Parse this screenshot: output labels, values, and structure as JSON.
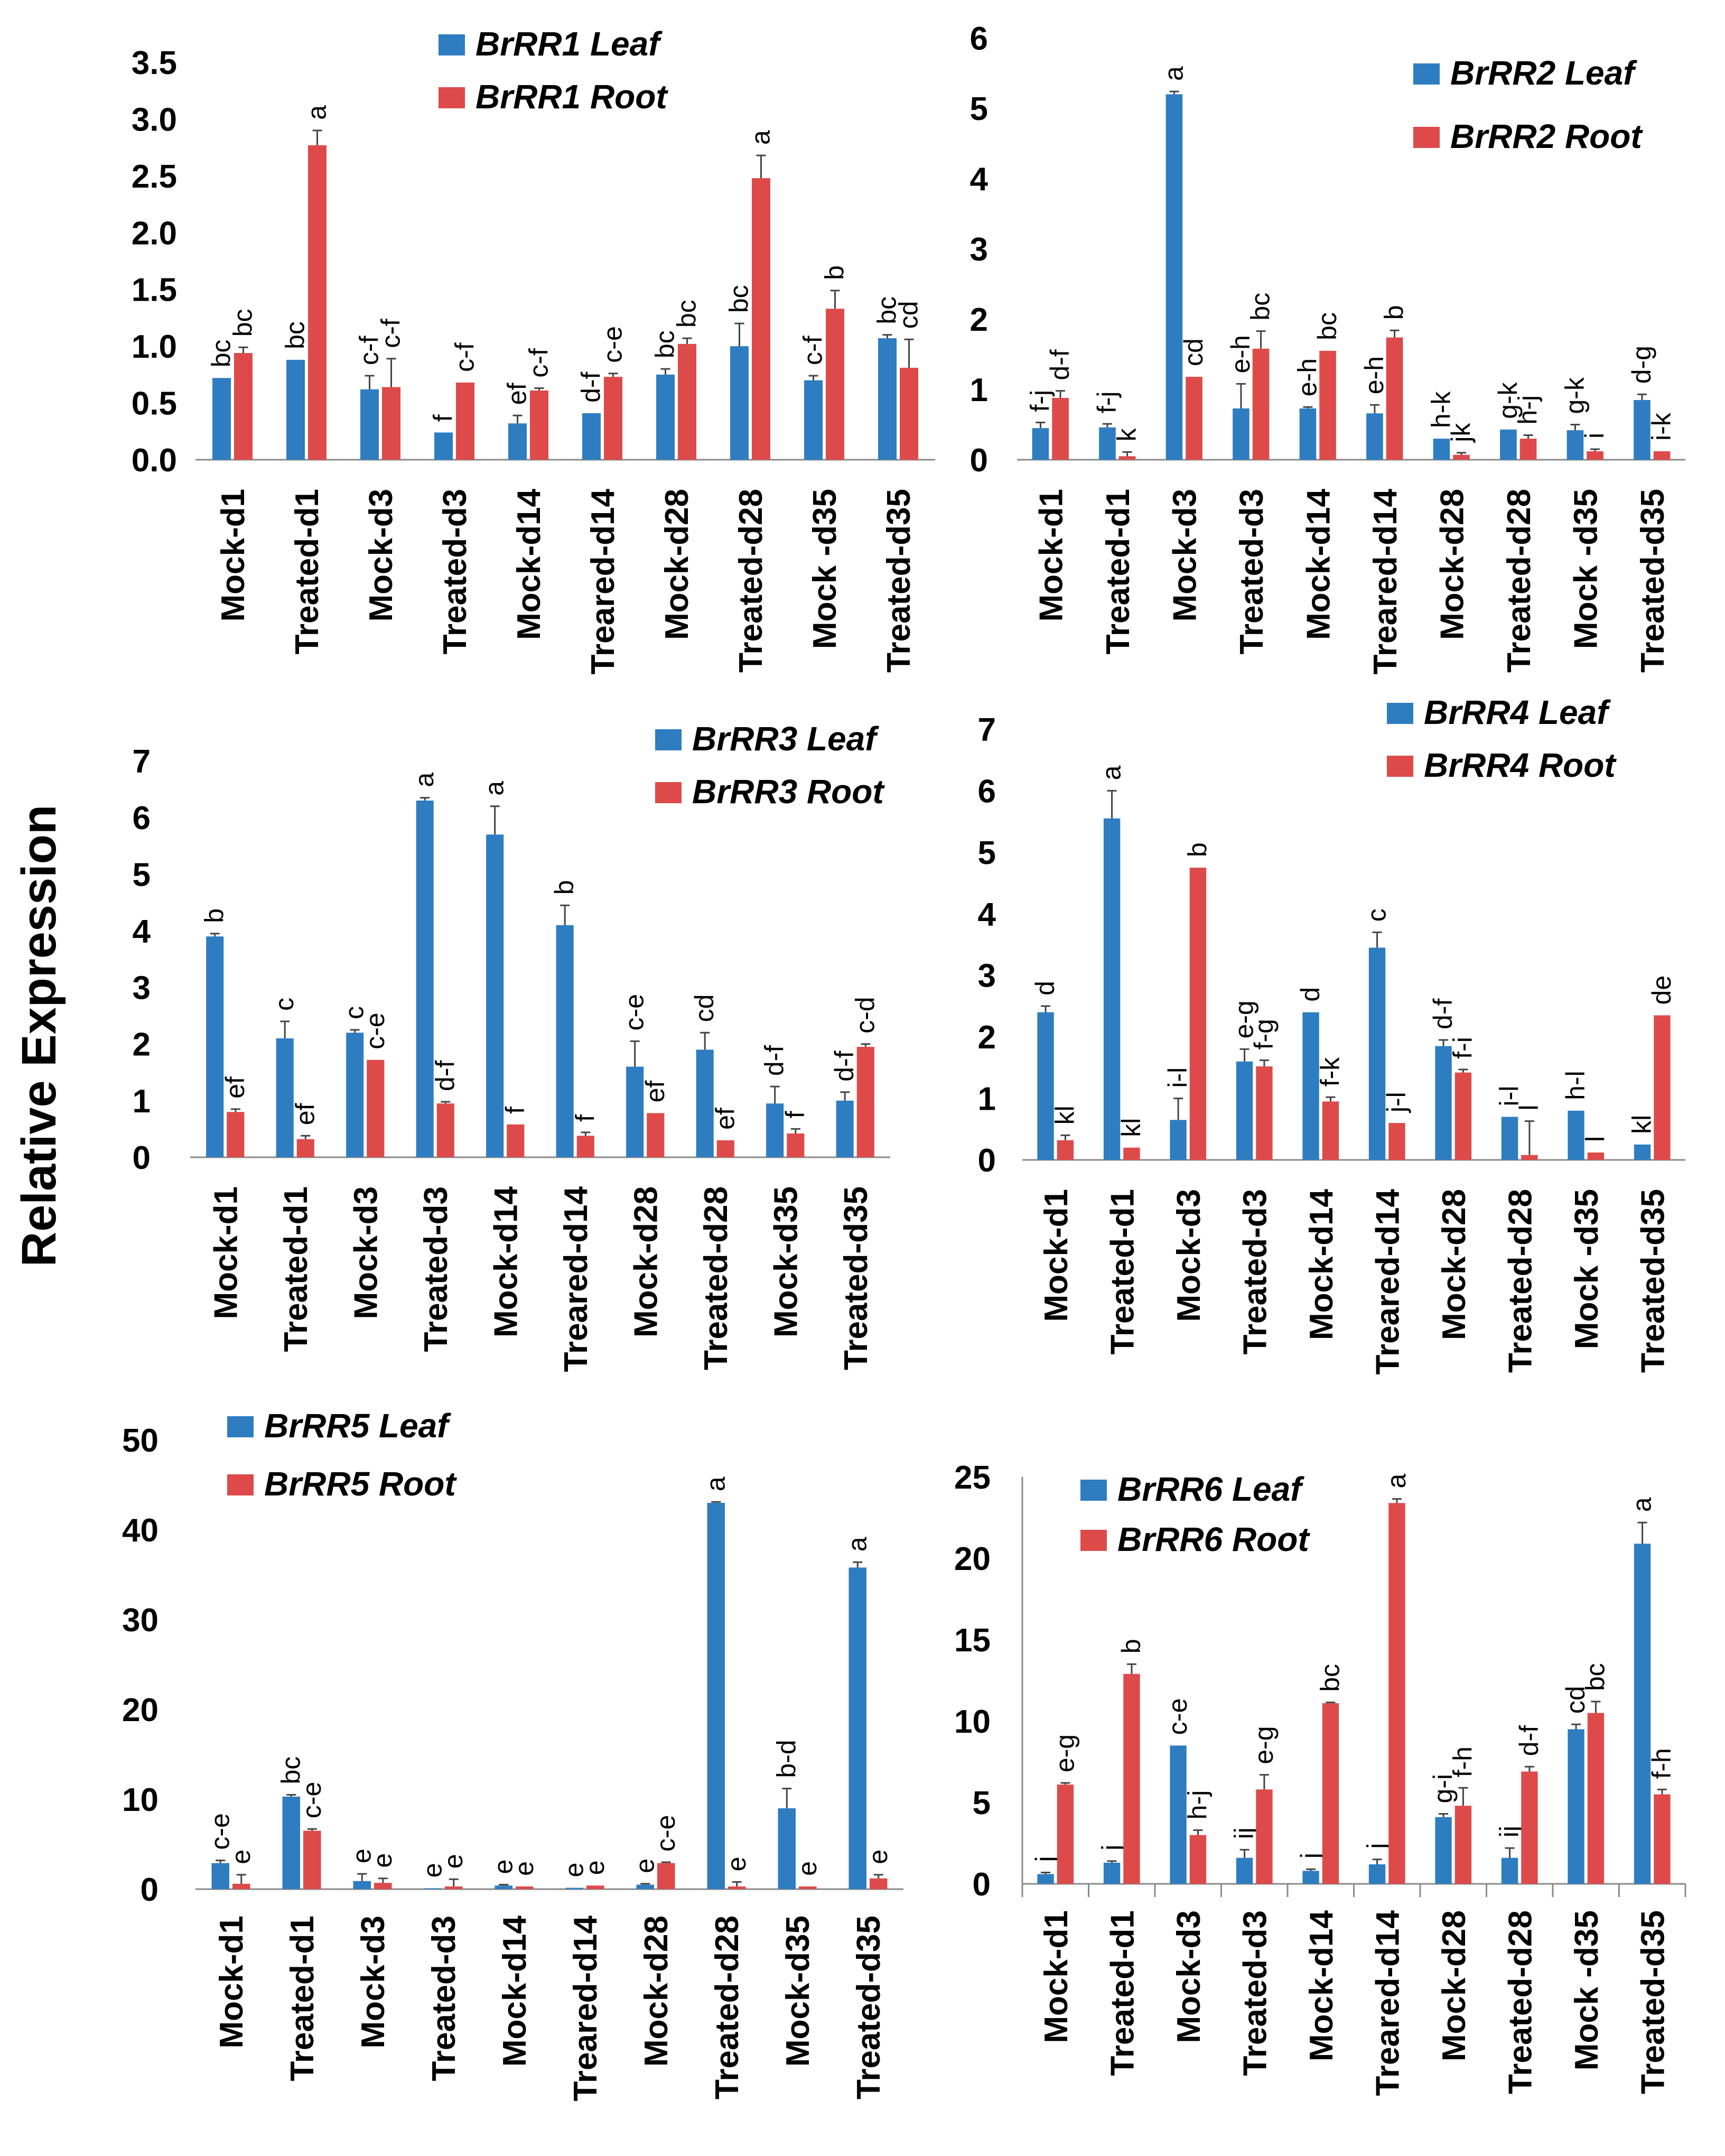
{
  "figure": {
    "ylabel": "Relative Expression"
  },
  "colors": {
    "leaf": "#2E7DC1",
    "root": "#DE4A4A"
  },
  "chart_data": [
    {
      "type": "bar",
      "title": "BrRR1",
      "ylim": [
        0,
        3.5
      ],
      "yticks": [
        "0.0",
        "0.5",
        "1.0",
        "1.5",
        "2.0",
        "2.5",
        "3.0",
        "3.5"
      ],
      "categories": [
        "Mock-d1",
        "Treated-d1",
        "Mock-d3",
        "Treated-d3",
        "Mock-d14",
        "Treared-d14",
        "Mock-d28",
        "Treated-d28",
        "Mock -d35",
        "Treated-d35"
      ],
      "series": [
        {
          "name": "BrRR1 Leaf",
          "values": [
            0.72,
            0.88,
            0.62,
            0.24,
            0.32,
            0.41,
            0.75,
            1.0,
            0.7,
            1.07
          ],
          "errors": [
            0,
            0,
            0.12,
            0,
            0.07,
            0,
            0.05,
            0.2,
            0.04,
            0.03
          ],
          "sig": [
            "bc",
            "bc",
            "c-f",
            "f",
            "ef",
            "d-f",
            "bc",
            "bc",
            "c-f",
            "bc"
          ]
        },
        {
          "name": "BrRR1 Root",
          "values": [
            0.94,
            2.77,
            0.64,
            0.68,
            0.61,
            0.73,
            1.02,
            2.48,
            1.33,
            0.81
          ],
          "errors": [
            0.05,
            0.13,
            0.25,
            0,
            0.02,
            0.03,
            0.05,
            0.2,
            0.16,
            0.25
          ],
          "sig": [
            "bc",
            "a",
            "c-f",
            "c-f",
            "c-f",
            "c-e",
            "bc",
            "a",
            "b",
            "cd"
          ]
        }
      ]
    },
    {
      "type": "bar",
      "title": "BrRR2",
      "ylim": [
        0,
        6
      ],
      "yticks": [
        "0",
        "1",
        "2",
        "3",
        "4",
        "5",
        "6"
      ],
      "categories": [
        "Mock-d1",
        "Treated-d1",
        "Mock-d3",
        "Treated-d3",
        "Mock-d14",
        "Treared-d14",
        "Mock-d28",
        "Treated-d28",
        "Mock -d35",
        "Treated-d35"
      ],
      "series": [
        {
          "name": "BrRR2 Leaf",
          "values": [
            0.45,
            0.46,
            5.2,
            0.73,
            0.73,
            0.66,
            0.3,
            0.43,
            0.42,
            0.85
          ],
          "errors": [
            0.08,
            0.05,
            0.04,
            0.35,
            0.02,
            0.12,
            0,
            0,
            0.08,
            0.08
          ],
          "sig": [
            "f-j",
            "f-j",
            "a",
            "e-h",
            "e-h",
            "e-h",
            "h-k",
            "g-k",
            "g-k",
            "d-g"
          ]
        },
        {
          "name": "BrRR2 Root",
          "values": [
            0.88,
            0.05,
            1.18,
            1.58,
            1.55,
            1.74,
            0.07,
            0.3,
            0.12,
            0.12
          ],
          "errors": [
            0.1,
            0.06,
            0,
            0.25,
            0,
            0.1,
            0.03,
            0.05,
            0.03,
            0
          ],
          "sig": [
            "d-f",
            "k",
            "cd",
            "bc",
            "bc",
            "b",
            "jk",
            "h-j",
            "i",
            "i-k"
          ]
        }
      ]
    },
    {
      "type": "bar",
      "title": "BrRR3",
      "ylim": [
        0,
        7
      ],
      "yticks": [
        "0",
        "1",
        "2",
        "3",
        "4",
        "5",
        "6",
        "7"
      ],
      "categories": [
        "Mock-d1",
        "Treated-d1",
        "Mock-d3",
        "Treated-d3",
        "Mock-d14",
        "Treared-d14",
        "Mock-d28",
        "Treated-d28",
        "Mock-d35",
        "Treated-d35"
      ],
      "series": [
        {
          "name": "BrRR3 Leaf",
          "values": [
            3.9,
            2.1,
            2.2,
            6.3,
            5.7,
            4.1,
            1.6,
            1.9,
            0.95,
            1.0
          ],
          "errors": [
            0.05,
            0.3,
            0.05,
            0.05,
            0.5,
            0.35,
            0.45,
            0.3,
            0.3,
            0.15
          ],
          "sig": [
            "b",
            "c",
            "c",
            "a",
            "a",
            "b",
            "c-e",
            "cd",
            "d-f",
            "d-f"
          ]
        },
        {
          "name": "BrRR3 Root",
          "values": [
            0.8,
            0.32,
            1.72,
            0.95,
            0.58,
            0.38,
            0.78,
            0.3,
            0.42,
            1.95
          ],
          "errors": [
            0.05,
            0.06,
            0,
            0.03,
            0,
            0.06,
            0,
            0,
            0.08,
            0.05
          ],
          "sig": [
            "ef",
            "ef",
            "c-e",
            "d-f",
            "f",
            "f",
            "ef",
            "ef",
            "f",
            "c-d"
          ]
        }
      ]
    },
    {
      "type": "bar",
      "title": "BrRR4",
      "ylim": [
        0,
        7
      ],
      "yticks": [
        "0",
        "1",
        "2",
        "3",
        "4",
        "5",
        "6",
        "7"
      ],
      "categories": [
        "Mock-d1",
        "Treated-d1",
        "Mock-d3",
        "Treated-d3",
        "Mock-d14",
        "Treared-d14",
        "Mock-d28",
        "Treated-d28",
        "Mock -d35",
        "Treated-d35"
      ],
      "series": [
        {
          "name": "BrRR4 Leaf",
          "values": [
            2.4,
            5.55,
            0.65,
            1.6,
            2.4,
            3.45,
            1.85,
            0.7,
            0.8,
            0.25
          ],
          "errors": [
            0.1,
            0.45,
            0.35,
            0.2,
            0,
            0.25,
            0.1,
            0,
            0,
            0
          ],
          "sig": [
            "d",
            "a",
            "i-l",
            "e-g",
            "d",
            "c",
            "d-f",
            "i-l",
            "h-l",
            "kl"
          ]
        },
        {
          "name": "BrRR4 Root",
          "values": [
            0.32,
            0.2,
            4.75,
            1.52,
            0.95,
            0.6,
            1.42,
            0.08,
            0.12,
            2.35
          ],
          "errors": [
            0.08,
            0,
            0,
            0.1,
            0.07,
            0,
            0.05,
            0.55,
            0,
            0
          ],
          "sig": [
            "kl",
            "kl",
            "b",
            "f-g",
            "f-k",
            "j-l",
            "f-i",
            "l",
            "l",
            "de"
          ]
        }
      ]
    },
    {
      "type": "bar",
      "title": "BrRR5",
      "ylim": [
        0,
        50
      ],
      "yticks": [
        "0",
        "10",
        "20",
        "30",
        "40",
        "50"
      ],
      "categories": [
        "Mock-d1",
        "Treated-d1",
        "Mock-d3",
        "Treated-d3",
        "Mock-d14",
        "Treared-d14",
        "Mock-d28",
        "Treated-d28",
        "Mock-d35",
        "Treated-d35"
      ],
      "series": [
        {
          "name": "BrRR5 Leaf",
          "values": [
            2.9,
            10.3,
            0.9,
            0.1,
            0.4,
            0.15,
            0.5,
            43,
            9,
            35.8
          ],
          "errors": [
            0.3,
            0.2,
            0.8,
            0,
            0.1,
            0,
            0.1,
            0.1,
            2.2,
            0.6
          ],
          "sig": [
            "c-e",
            "bc",
            "e",
            "e",
            "e",
            "e",
            "e",
            "a",
            "b-d",
            "a"
          ]
        },
        {
          "name": "BrRR5 Root",
          "values": [
            0.6,
            6.5,
            0.7,
            0.3,
            0.3,
            0.4,
            2.9,
            0.3,
            0.3,
            1.2
          ],
          "errors": [
            1.0,
            0.2,
            0.5,
            0.8,
            0,
            0,
            0.1,
            0.5,
            0,
            0.4
          ],
          "sig": [
            "e",
            "c-e",
            "e",
            "e",
            "e",
            "e",
            "c-e",
            "e",
            "e",
            "e"
          ]
        }
      ]
    },
    {
      "type": "bar",
      "title": "BrRR6",
      "ylim": [
        0,
        25
      ],
      "yticks": [
        "0",
        "5",
        "10",
        "15",
        "20",
        "25"
      ],
      "categories": [
        "Mock-d1",
        "Treated-d1",
        "Mock-d3",
        "Treated-d3",
        "Mock-d14",
        "Treared-d14",
        "Mock-d28",
        "Treated-d28",
        "Mock -d35",
        "Treated-d35"
      ],
      "series": [
        {
          "name": "BrRR6 Leaf",
          "values": [
            0.6,
            1.3,
            8.5,
            1.6,
            0.8,
            1.2,
            4.1,
            1.6,
            9.5,
            20.9
          ],
          "errors": [
            0.1,
            0.1,
            0,
            0.5,
            0.1,
            0.3,
            0.2,
            0.6,
            0.3,
            1.3
          ],
          "sig": [
            "j",
            "j",
            "c-e",
            "ij",
            "j",
            "j",
            "g-i",
            "ij",
            "cd",
            "a"
          ]
        },
        {
          "name": "BrRR6 Root",
          "values": [
            6.1,
            12.9,
            3.0,
            5.8,
            11.1,
            23.4,
            4.8,
            6.9,
            10.5,
            5.5
          ],
          "errors": [
            0.1,
            0.6,
            0.3,
            0.9,
            0.05,
            0.25,
            1.1,
            0.3,
            0.7,
            0.3
          ],
          "sig": [
            "e-g",
            "b",
            "h-j",
            "e-g",
            "bc",
            "a",
            "f-h",
            "d-f",
            "bc",
            "f-h"
          ]
        }
      ]
    }
  ]
}
